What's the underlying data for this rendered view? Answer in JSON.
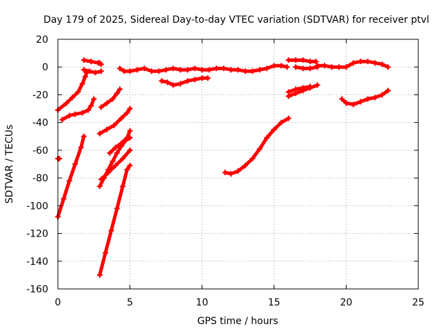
{
  "chart_data": {
    "type": "scatter",
    "title": "Day 179 of 2025, Sidereal Day-to-day VTEC variation (SDTVAR) for receiver ptvl",
    "xlabel": "GPS time / hours",
    "ylabel": "SDTVAR / TECUs",
    "xlim": [
      0,
      25
    ],
    "ylim": [
      -160,
      20
    ],
    "xticks": [
      "0",
      "5",
      "10",
      "15",
      "20",
      "25"
    ],
    "yticks": [
      "20",
      "0",
      "-20",
      "-40",
      "-60",
      "-80",
      "-100",
      "-120",
      "-140",
      "-160"
    ],
    "grid": true,
    "series_color": "#ff0000",
    "segments": [
      [
        [
          0,
          -31
        ],
        [
          0.6,
          -26
        ],
        [
          1.0,
          -22
        ],
        [
          1.4,
          -18
        ],
        [
          1.7,
          -12
        ],
        [
          1.9,
          -7
        ],
        [
          2.0,
          -4
        ]
      ],
      [
        [
          0.3,
          -38
        ],
        [
          0.8,
          -35
        ],
        [
          1.2,
          -34
        ],
        [
          1.7,
          -33
        ],
        [
          2.1,
          -31
        ],
        [
          2.3,
          -28
        ],
        [
          2.5,
          -23
        ]
      ],
      [
        [
          0.0,
          -108
        ],
        [
          0.4,
          -95
        ],
        [
          0.8,
          -82
        ],
        [
          1.2,
          -70
        ],
        [
          1.6,
          -58
        ],
        [
          1.8,
          -50
        ]
      ],
      [
        [
          0.0,
          -66
        ],
        [
          0.1,
          -66
        ]
      ],
      [
        [
          1.8,
          5
        ],
        [
          2.3,
          4
        ],
        [
          2.8,
          3
        ]
      ],
      [
        [
          1.8,
          -2
        ],
        [
          2.2,
          -3
        ],
        [
          2.6,
          -4
        ],
        [
          3.0,
          -3
        ]
      ],
      [
        [
          2.9,
          3
        ],
        [
          3.0,
          2
        ]
      ],
      [
        [
          3.0,
          -29
        ],
        [
          3.4,
          -26
        ],
        [
          3.8,
          -23
        ],
        [
          4.1,
          -19
        ],
        [
          4.3,
          -16
        ]
      ],
      [
        [
          2.9,
          -48
        ],
        [
          3.4,
          -45
        ],
        [
          3.9,
          -42
        ],
        [
          4.4,
          -37
        ],
        [
          4.8,
          -33
        ],
        [
          5.0,
          -30
        ]
      ],
      [
        [
          2.9,
          -86
        ],
        [
          3.2,
          -80
        ],
        [
          3.5,
          -74
        ],
        [
          3.8,
          -68
        ],
        [
          4.1,
          -62
        ],
        [
          4.4,
          -57
        ],
        [
          4.7,
          -53
        ],
        [
          5.0,
          -51
        ]
      ],
      [
        [
          3.0,
          -81
        ],
        [
          3.5,
          -76
        ],
        [
          4.0,
          -71
        ],
        [
          4.5,
          -66
        ],
        [
          5.0,
          -60
        ]
      ],
      [
        [
          3.6,
          -62
        ],
        [
          4.0,
          -58
        ],
        [
          4.4,
          -55
        ],
        [
          4.8,
          -51
        ],
        [
          5.0,
          -46
        ]
      ],
      [
        [
          2.9,
          -150
        ],
        [
          3.3,
          -134
        ],
        [
          3.7,
          -118
        ],
        [
          4.1,
          -102
        ],
        [
          4.5,
          -86
        ],
        [
          4.8,
          -74
        ],
        [
          5.0,
          -71
        ]
      ],
      [
        [
          4.3,
          -1
        ],
        [
          4.6,
          -3
        ],
        [
          5.0,
          -3
        ],
        [
          5.5,
          -2
        ],
        [
          6.0,
          -1
        ],
        [
          6.5,
          -3
        ],
        [
          7.0,
          -3
        ],
        [
          7.5,
          -2
        ],
        [
          8.0,
          -1
        ],
        [
          8.5,
          -2
        ],
        [
          9.0,
          -2
        ],
        [
          9.5,
          -1
        ],
        [
          10.0,
          -2
        ],
        [
          10.5,
          -2
        ],
        [
          11.0,
          -1
        ],
        [
          11.5,
          -1
        ],
        [
          12.0,
          -2
        ],
        [
          12.5,
          -2
        ],
        [
          13.0,
          -3
        ],
        [
          13.5,
          -3
        ],
        [
          14.0,
          -2
        ],
        [
          14.5,
          -1
        ],
        [
          15.0,
          1
        ],
        [
          15.5,
          1
        ],
        [
          15.9,
          0
        ]
      ],
      [
        [
          7.2,
          -10
        ],
        [
          7.6,
          -11
        ],
        [
          8.0,
          -13
        ],
        [
          8.5,
          -12
        ],
        [
          9.0,
          -10
        ],
        [
          9.5,
          -9
        ],
        [
          10.0,
          -8
        ],
        [
          10.4,
          -8
        ]
      ],
      [
        [
          11.6,
          -76
        ],
        [
          12.0,
          -77
        ],
        [
          12.5,
          -75
        ],
        [
          13.0,
          -71
        ],
        [
          13.5,
          -66
        ],
        [
          14.0,
          -59
        ],
        [
          14.5,
          -51
        ],
        [
          15.0,
          -45
        ],
        [
          15.5,
          -40
        ],
        [
          16.0,
          -37
        ]
      ],
      [
        [
          16.0,
          5
        ],
        [
          16.5,
          5
        ],
        [
          17.0,
          5
        ],
        [
          17.5,
          4
        ],
        [
          17.9,
          4
        ]
      ],
      [
        [
          16.5,
          0
        ],
        [
          17.0,
          -1
        ],
        [
          17.5,
          -1
        ],
        [
          18.0,
          0
        ]
      ],
      [
        [
          16.0,
          -21
        ],
        [
          16.5,
          -19
        ],
        [
          17.0,
          -17
        ],
        [
          17.5,
          -15
        ],
        [
          18.0,
          -13
        ]
      ],
      [
        [
          16.0,
          -18
        ],
        [
          16.5,
          -16
        ],
        [
          17.0,
          -15
        ],
        [
          17.5,
          -14
        ]
      ],
      [
        [
          18.0,
          1
        ],
        [
          18.5,
          1
        ],
        [
          19.0,
          0
        ],
        [
          19.5,
          0
        ],
        [
          20.0,
          0
        ],
        [
          20.5,
          3
        ],
        [
          21.0,
          4
        ],
        [
          21.5,
          4
        ],
        [
          22.0,
          3
        ],
        [
          22.5,
          2
        ],
        [
          22.9,
          0
        ]
      ],
      [
        [
          19.7,
          -23
        ],
        [
          20.0,
          -26
        ],
        [
          20.5,
          -27
        ],
        [
          21.0,
          -25
        ],
        [
          21.5,
          -23
        ],
        [
          22.0,
          -22
        ],
        [
          22.5,
          -20
        ],
        [
          22.9,
          -17
        ]
      ]
    ]
  }
}
